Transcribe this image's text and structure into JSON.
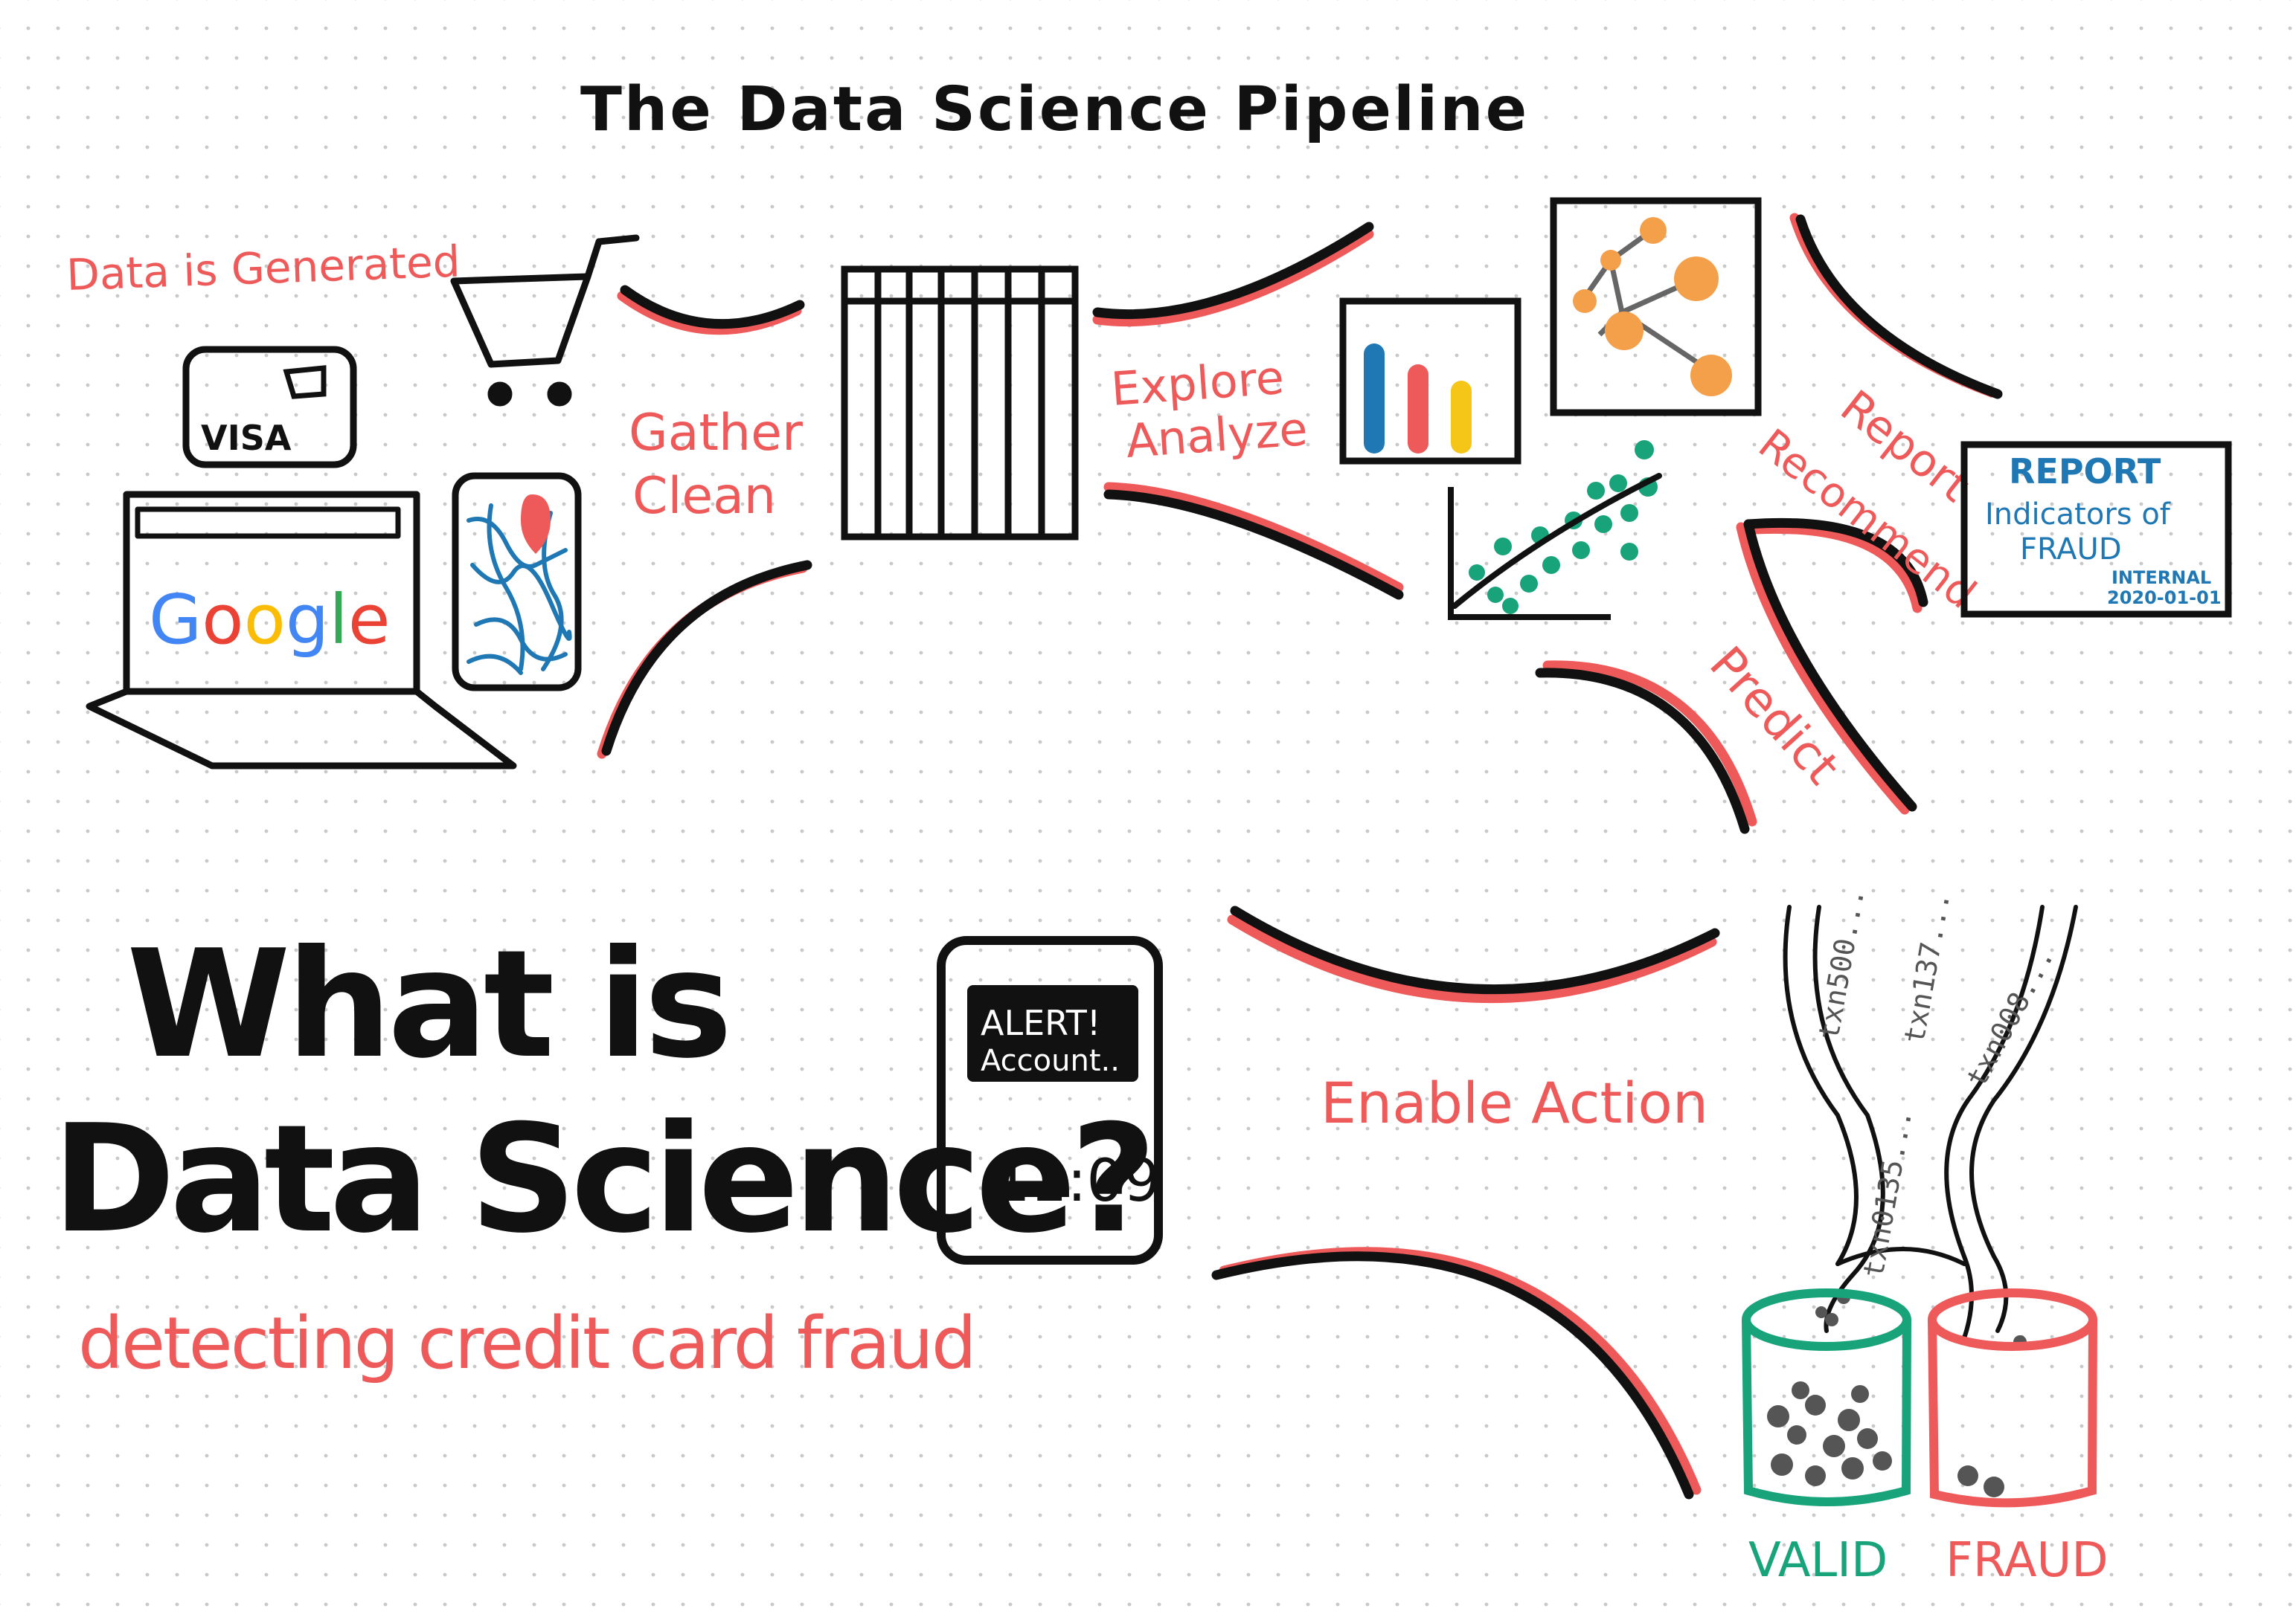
{
  "title": "The Data Science Pipeline",
  "main_question": {
    "line1": "What is",
    "line2": "Data Science?"
  },
  "subtitle": "detecting credit card fraud",
  "stages": {
    "generated": "Data is Generated",
    "gather": "Gather",
    "clean": "Clean",
    "explore": "Explore",
    "analyze": "Analyze",
    "report": "Report",
    "recommend": "Recommend",
    "predict": "Predict",
    "enable_action": "Enable Action"
  },
  "card": {
    "brand": "VISA"
  },
  "laptop": {
    "brand": "Google"
  },
  "report_doc": {
    "heading": "REPORT",
    "line1": "Indicators of",
    "line2": "FRAUD",
    "tag": "INTERNAL",
    "date": "2020-01-01"
  },
  "phone": {
    "alert_line1": "ALERT!",
    "alert_line2": "Account..",
    "time": "11:09"
  },
  "transactions": [
    "txn500...",
    "txn137...",
    "txn008...",
    "txn0135..."
  ],
  "bins": {
    "valid": "VALID",
    "fraud": "FRAUD"
  },
  "colors": {
    "ink": "#111111",
    "accent_red": "#ee5a5a",
    "blue": "#1f78b4",
    "green": "#19a37a",
    "orange": "#f4a04a",
    "yellow": "#f5c518",
    "dot_gray": "#555555"
  },
  "google_colors": [
    "#4285f4",
    "#ea4335",
    "#fbbc05",
    "#4285f4",
    "#34a853",
    "#ea4335"
  ]
}
